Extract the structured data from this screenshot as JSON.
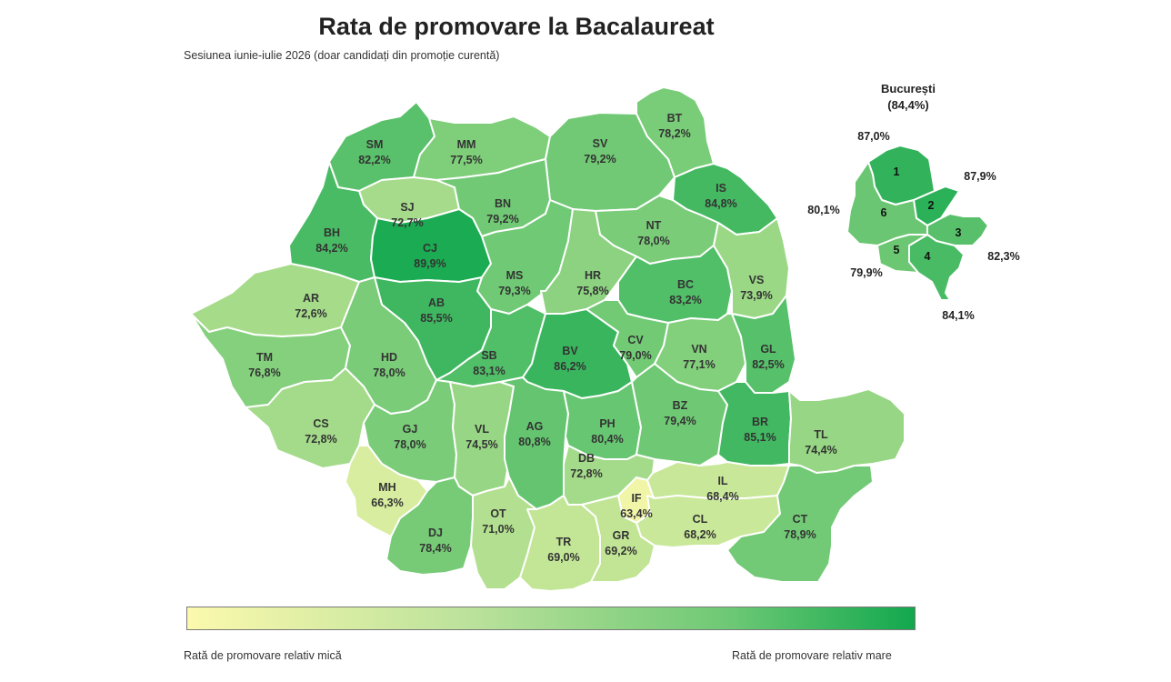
{
  "title": "Rata de promovare la Bacalaureat",
  "subtitle": "Sesiunea iunie-iulie 2026 (doar candidați din promoție curentă)",
  "color_scale": {
    "low": "#fbf9ad",
    "high": "#12a84e"
  },
  "counties": [
    {
      "code": "SM",
      "rate": 82.2,
      "label": "82,2%"
    },
    {
      "code": "MM",
      "rate": 77.5,
      "label": "77,5%"
    },
    {
      "code": "SV",
      "rate": 79.2,
      "label": "79,2%"
    },
    {
      "code": "BT",
      "rate": 78.2,
      "label": "78,2%"
    },
    {
      "code": "SJ",
      "rate": 72.7,
      "label": "72,7%"
    },
    {
      "code": "BN",
      "rate": 79.2,
      "label": "79,2%"
    },
    {
      "code": "IS",
      "rate": 84.8,
      "label": "84,8%"
    },
    {
      "code": "BH",
      "rate": 84.2,
      "label": "84,2%"
    },
    {
      "code": "CJ",
      "rate": 89.9,
      "label": "89,9%"
    },
    {
      "code": "NT",
      "rate": 78.0,
      "label": "78,0%"
    },
    {
      "code": "MS",
      "rate": 79.3,
      "label": "79,3%"
    },
    {
      "code": "HR",
      "rate": 75.8,
      "label": "75,8%"
    },
    {
      "code": "BC",
      "rate": 83.2,
      "label": "83,2%"
    },
    {
      "code": "VS",
      "rate": 73.9,
      "label": "73,9%"
    },
    {
      "code": "AR",
      "rate": 72.6,
      "label": "72,6%"
    },
    {
      "code": "AB",
      "rate": 85.5,
      "label": "85,5%"
    },
    {
      "code": "TM",
      "rate": 76.8,
      "label": "76,8%"
    },
    {
      "code": "HD",
      "rate": 78.0,
      "label": "78,0%"
    },
    {
      "code": "SB",
      "rate": 83.1,
      "label": "83,1%"
    },
    {
      "code": "BV",
      "rate": 86.2,
      "label": "86,2%"
    },
    {
      "code": "CV",
      "rate": 79.0,
      "label": "79,0%"
    },
    {
      "code": "VN",
      "rate": 77.1,
      "label": "77,1%"
    },
    {
      "code": "GL",
      "rate": 82.5,
      "label": "82,5%"
    },
    {
      "code": "CS",
      "rate": 72.8,
      "label": "72,8%"
    },
    {
      "code": "GJ",
      "rate": 78.0,
      "label": "78,0%"
    },
    {
      "code": "VL",
      "rate": 74.5,
      "label": "74,5%"
    },
    {
      "code": "AG",
      "rate": 80.8,
      "label": "80,8%"
    },
    {
      "code": "PH",
      "rate": 80.4,
      "label": "80,4%"
    },
    {
      "code": "BZ",
      "rate": 79.4,
      "label": "79,4%"
    },
    {
      "code": "BR",
      "rate": 85.1,
      "label": "85,1%"
    },
    {
      "code": "TL",
      "rate": 74.4,
      "label": "74,4%"
    },
    {
      "code": "MH",
      "rate": 66.3,
      "label": "66,3%"
    },
    {
      "code": "DJ",
      "rate": 78.4,
      "label": "78,4%"
    },
    {
      "code": "OT",
      "rate": 71.0,
      "label": "71,0%"
    },
    {
      "code": "DB",
      "rate": 72.8,
      "label": "72,8%"
    },
    {
      "code": "IF",
      "rate": 63.4,
      "label": "63,4%"
    },
    {
      "code": "IL",
      "rate": 68.4,
      "label": "68,4%"
    },
    {
      "code": "CL",
      "rate": 68.2,
      "label": "68,2%"
    },
    {
      "code": "TR",
      "rate": 69.0,
      "label": "69,0%"
    },
    {
      "code": "GR",
      "rate": 69.2,
      "label": "69,2%"
    },
    {
      "code": "CT",
      "rate": 78.9,
      "label": "78,9%"
    }
  ],
  "bucharest": {
    "title": "București",
    "rate_label": "(84,4%)",
    "sectors": [
      {
        "num": "1",
        "rate": 87.0,
        "label": "87,0%"
      },
      {
        "num": "2",
        "rate": 87.9,
        "label": "87,9%"
      },
      {
        "num": "3",
        "rate": 82.3,
        "label": "82,3%"
      },
      {
        "num": "4",
        "rate": 84.1,
        "label": "84,1%"
      },
      {
        "num": "5",
        "rate": 79.9,
        "label": "79,9%"
      },
      {
        "num": "6",
        "rate": 80.1,
        "label": "80,1%"
      }
    ]
  },
  "legend": {
    "low_label": "Rată de promovare relativ mică",
    "high_label": "Rată de promovare relativ mare"
  }
}
